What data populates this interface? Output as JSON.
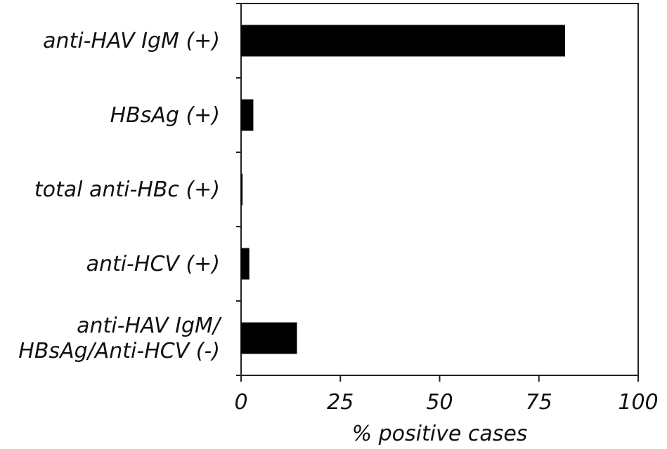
{
  "chart_data": {
    "type": "bar",
    "orientation": "horizontal",
    "categories": [
      [
        "anti-HAV IgM (+)"
      ],
      [
        "HBsAg (+)"
      ],
      [
        "total anti-HBc (+)"
      ],
      [
        "anti-HCV (+)"
      ],
      [
        "anti-HAV IgM/",
        "HBsAg/Anti-HCV (-)"
      ]
    ],
    "values": [
      81.5,
      3,
      0.3,
      2,
      14
    ],
    "xlabel": "% positive cases",
    "ylabel": "",
    "title": "",
    "xlim": [
      0,
      100
    ],
    "xticks": [
      "0",
      "25",
      "50",
      "75",
      "100"
    ],
    "grid": false,
    "legend": "none",
    "bar_color": "#000000"
  }
}
